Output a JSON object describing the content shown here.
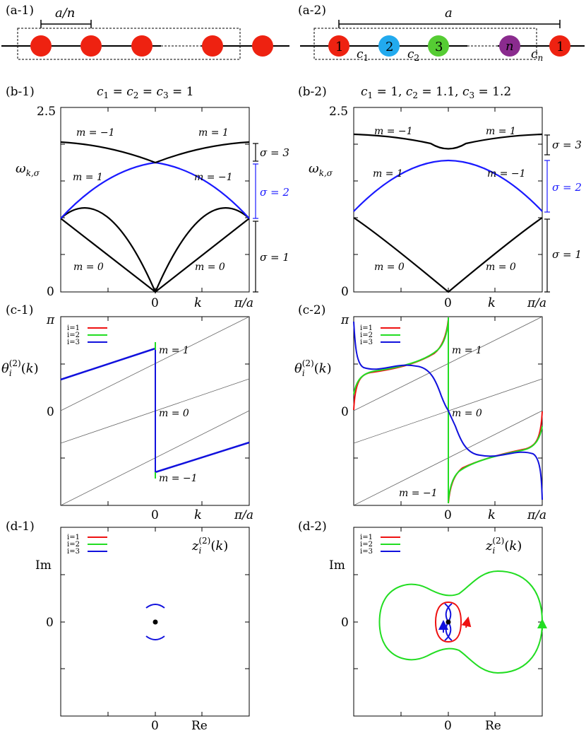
{
  "panels": {
    "a1": {
      "label": "(a-1)",
      "spacing_label": "a/n"
    },
    "a2": {
      "label": "(a-2)",
      "period_label": "a",
      "atoms": [
        {
          "text": "1",
          "color": "#ee2211"
        },
        {
          "text": "2",
          "color": "#22aaee"
        },
        {
          "text": "3",
          "color": "#55cc33"
        },
        {
          "text": "n",
          "color": "#8a2b8e"
        },
        {
          "text": "1",
          "color": "#ee2211"
        }
      ],
      "bonds": [
        "c1",
        "c2",
        "cn"
      ]
    },
    "b1": {
      "label": "(b-1)",
      "title": "c1 = c2 = c3 = 1",
      "ylabel": "ω k,σ",
      "xlabel": "k",
      "y_ticks": [
        "0",
        "2.5"
      ],
      "x_ticks": [
        "0",
        "π/a"
      ],
      "band_labels": [
        "m = −1",
        "m = 1",
        "m = 1",
        "m = −1",
        "m = 0",
        "m = 0"
      ],
      "sigma_labels": [
        "σ = 3",
        "σ = 2",
        "σ = 1"
      ]
    },
    "b2": {
      "label": "(b-2)",
      "title": "c1 = 1, c2 = 1.1, c3 = 1.2",
      "ylabel": "ω k,σ",
      "xlabel": "k",
      "y_ticks": [
        "0",
        "2.5"
      ],
      "x_ticks": [
        "0",
        "π/a"
      ],
      "band_labels": [
        "m = −1",
        "m = 1",
        "m = 1",
        "m = −1",
        "m = 0",
        "m = 0"
      ],
      "sigma_labels": [
        "σ = 3",
        "σ = 2",
        "σ = 1"
      ]
    },
    "c1": {
      "label": "(c-1)",
      "ylabel": "θ i (2) (k)",
      "xlabel": "k",
      "y_ticks": [
        "π",
        "0"
      ],
      "x_ticks": [
        "0",
        "π/a"
      ],
      "m_labels": [
        "m = 1",
        "m = 0",
        "m = −1"
      ]
    },
    "c2": {
      "label": "(c-2)",
      "ylabel": "θ i (2) (k)",
      "xlabel": "k",
      "y_ticks": [
        "π",
        "0"
      ],
      "x_ticks": [
        "0",
        "π/a"
      ],
      "m_labels": [
        "m = 1",
        "m = 0",
        "m = −1"
      ]
    },
    "d1": {
      "label": "(d-1)",
      "ylabel": "Im",
      "xlabel": "Re",
      "x_ticks": [
        "0"
      ],
      "y_ticks": [
        "0"
      ],
      "corner_label": "z i (2) (k)"
    },
    "d2": {
      "label": "(d-2)",
      "ylabel": "Im",
      "xlabel": "Re",
      "x_ticks": [
        "0"
      ],
      "y_ticks": [
        "0"
      ],
      "corner_label": "z i (2) (k)"
    }
  },
  "legend": [
    {
      "name": "i=1",
      "color": "#ee1111"
    },
    {
      "name": "i=2",
      "color": "#22dd22"
    },
    {
      "name": "i=3",
      "color": "#1111dd"
    }
  ],
  "colors": {
    "band_black": "#000000",
    "band_blue": "#1a1aff",
    "red_atom": "#ee2211"
  },
  "chart_data": [
    {
      "panel": "b-1",
      "type": "line",
      "xlim": [
        -3.1416,
        3.1416
      ],
      "ylim": [
        0,
        2.5
      ],
      "series": [
        {
          "color": "#000000",
          "x": [
            -3.1416,
            -2.356,
            -1.571,
            -0.785,
            0,
            0.785,
            1.571,
            2.356,
            3.1416
          ],
          "y": [
            1.0,
            0.77,
            0.52,
            0.26,
            0,
            0.26,
            0.52,
            0.77,
            1.0
          ]
        },
        {
          "color": "#1a1aff",
          "x": [
            -3.1416,
            -2.356,
            -1.571,
            -0.785,
            0,
            0.785,
            1.571,
            2.356,
            3.1416
          ],
          "y": [
            1.0,
            1.26,
            1.48,
            1.64,
            1.73,
            1.64,
            1.48,
            1.26,
            1.0
          ]
        },
        {
          "color": "#000000",
          "x": [
            -3.1416,
            -2.356,
            -1.571,
            -0.785,
            0,
            0.785,
            1.571,
            2.356,
            3.1416
          ],
          "y": [
            2.0,
            1.97,
            1.9,
            1.83,
            1.73,
            1.83,
            1.9,
            1.97,
            2.0
          ]
        }
      ]
    },
    {
      "panel": "b-2",
      "type": "line",
      "xlim": [
        -3.1416,
        3.1416
      ],
      "ylim": [
        0,
        2.5
      ],
      "series": [
        {
          "color": "#000000",
          "x": [
            -3.1416,
            -2.356,
            -1.571,
            -0.785,
            0,
            0.785,
            1.571,
            2.356,
            3.1416
          ],
          "y": [
            1.02,
            0.79,
            0.53,
            0.27,
            0,
            0.27,
            0.53,
            0.79,
            1.02
          ]
        },
        {
          "color": "#1a1aff",
          "x": [
            -3.1416,
            -2.356,
            -1.571,
            -0.785,
            0,
            0.785,
            1.571,
            2.356,
            3.1416
          ],
          "y": [
            1.1,
            1.32,
            1.5,
            1.62,
            1.66,
            1.62,
            1.5,
            1.32,
            1.1
          ]
        },
        {
          "color": "#000000",
          "x": [
            -3.1416,
            -2.356,
            -1.571,
            -0.785,
            0,
            0.785,
            1.571,
            2.356,
            3.1416
          ],
          "y": [
            2.14,
            2.12,
            2.06,
            1.97,
            1.9,
            1.97,
            2.06,
            2.12,
            2.14
          ]
        }
      ]
    },
    {
      "panel": "c-1",
      "type": "line",
      "xlim": [
        -3.1416,
        3.1416
      ],
      "ylim": [
        -3.1416,
        3.1416
      ],
      "series": [
        {
          "name": "i=3",
          "color": "#1111dd",
          "x": [
            -3.1416,
            0,
            0,
            0,
            3.1416
          ],
          "y": [
            1.047,
            2.094,
            0,
            -2.094,
            -1.047
          ]
        },
        {
          "name": "i=2",
          "color": "#22dd22",
          "x": [
            0,
            0
          ],
          "y": [
            2.25,
            2.05
          ]
        }
      ],
      "reference_lines": [
        {
          "x": [
            -3.1416,
            3.1416
          ],
          "y": [
            0,
            3.1416
          ]
        },
        {
          "x": [
            -3.1416,
            3.1416
          ],
          "y": [
            -1.571,
            1.571
          ]
        },
        {
          "x": [
            -3.1416,
            3.1416
          ],
          "y": [
            -3.1416,
            0
          ]
        }
      ]
    },
    {
      "panel": "c-2",
      "type": "line",
      "xlim": [
        -3.1416,
        3.1416
      ],
      "ylim": [
        -3.1416,
        3.1416
      ],
      "series": [
        {
          "name": "i=1",
          "color": "#ee1111",
          "x": [
            -3.1416,
            -3.0,
            -2.8,
            -2.0,
            -1.0,
            -0.3,
            -0.05,
            0
          ],
          "y": [
            0.05,
            0.55,
            0.9,
            1.15,
            1.45,
            1.9,
            2.6,
            3.1416
          ]
        },
        {
          "name": "i=1",
          "color": "#ee1111",
          "x": [
            0,
            0.05,
            0.3,
            1.0,
            2.0,
            2.8,
            3.0,
            3.1416
          ],
          "y": [
            -3.1416,
            -2.6,
            -1.9,
            -1.45,
            -1.15,
            -0.9,
            -0.55,
            -0.05
          ]
        },
        {
          "name": "i=2",
          "color": "#22dd22",
          "x": [
            -3.1416,
            -3.0,
            -2.8,
            -2.0,
            -1.0,
            -0.3,
            -0.05,
            0
          ],
          "y": [
            0.5,
            0.8,
            1.0,
            1.2,
            1.5,
            2.1,
            2.9,
            3.1416
          ]
        },
        {
          "name": "i=2",
          "color": "#22dd22",
          "x": [
            0,
            0.05,
            0.3,
            1.0,
            2.0,
            2.8,
            3.0,
            3.1416
          ],
          "y": [
            -3.1416,
            -2.9,
            -2.1,
            -1.5,
            -1.2,
            -1.0,
            -0.8,
            -0.5
          ]
        },
        {
          "name": "i=2",
          "color": "#22dd22",
          "x": [
            0,
            0
          ],
          "y": [
            3.1416,
            -3.1416
          ]
        },
        {
          "name": "i=3",
          "color": "#1111dd",
          "x": [
            -3.1416,
            -3.0,
            -2.6,
            -2.0,
            -1.0,
            -0.5,
            -0.2,
            0,
            0.2,
            0.5,
            1.0,
            2.0,
            2.6,
            3.0,
            3.1416
          ],
          "y": [
            3.1,
            1.5,
            1.35,
            1.4,
            1.6,
            1.2,
            0.4,
            0,
            -0.4,
            -1.2,
            -1.6,
            -1.4,
            -1.35,
            -1.5,
            -3.1
          ]
        }
      ],
      "reference_lines": [
        {
          "x": [
            -3.1416,
            3.1416
          ],
          "y": [
            0,
            3.1416
          ]
        },
        {
          "x": [
            -3.1416,
            3.1416
          ],
          "y": [
            -1.571,
            1.571
          ]
        },
        {
          "x": [
            -3.1416,
            3.1416
          ],
          "y": [
            -3.1416,
            0
          ]
        }
      ]
    },
    {
      "panel": "d-1",
      "type": "scatter",
      "xlim": [
        -2,
        2
      ],
      "ylim": [
        -2,
        2
      ],
      "series": [
        {
          "name": "i=3",
          "color": "#1111dd",
          "x": [
            -0.2,
            -0.1,
            0,
            0.1,
            0.2
          ],
          "y": [
            0.33,
            0.37,
            0.38,
            0.37,
            0.33
          ]
        },
        {
          "name": "i=3",
          "color": "#1111dd",
          "x": [
            -0.2,
            -0.1,
            0,
            0.1,
            0.2
          ],
          "y": [
            -0.33,
            -0.37,
            -0.38,
            -0.37,
            -0.33
          ]
        }
      ]
    },
    {
      "panel": "d-2",
      "type": "scatter",
      "xlim": [
        -2,
        2
      ],
      "ylim": [
        -2,
        2
      ],
      "series": [
        {
          "name": "i=2",
          "color": "#22dd22",
          "x": [
            2.0,
            1.8,
            1.3,
            0.7,
            0.3,
            0.1,
            -0.3,
            -0.8,
            -1.3,
            -1.5,
            -1.3,
            -0.8,
            -0.3,
            0.1,
            0.3,
            0.7,
            1.3,
            1.8,
            2.0
          ],
          "y": [
            0,
            0.95,
            1.3,
            1.1,
            0.75,
            0.55,
            0.75,
            0.75,
            0.45,
            0,
            -0.45,
            -0.75,
            -0.75,
            -0.55,
            -0.75,
            -1.1,
            -1.3,
            -0.95,
            0
          ]
        },
        {
          "name": "i=1",
          "color": "#ee1111",
          "x": [
            0.3,
            0.25,
            0.1,
            0,
            -0.15,
            -0.25,
            -0.25,
            -0.15,
            0,
            0.1,
            0.25,
            0.3
          ],
          "y": [
            0,
            0.28,
            0.4,
            0.42,
            0.35,
            0.12,
            -0.12,
            -0.35,
            -0.42,
            -0.4,
            -0.28,
            0
          ]
        },
        {
          "name": "i=3",
          "color": "#1111dd",
          "x": [
            0.1,
            0.05,
            -0.02,
            -0.08,
            -0.05,
            0.02,
            0.08,
            0.05,
            -0.02,
            -0.08
          ],
          "y": [
            0.42,
            0.3,
            0.15,
            0,
            -0.15,
            -0.3,
            -0.42,
            -0.3,
            -0.15,
            0
          ]
        }
      ]
    }
  ]
}
